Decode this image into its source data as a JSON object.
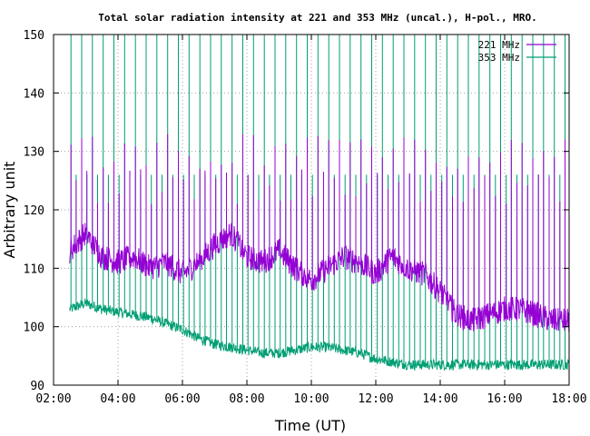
{
  "chart_data": {
    "type": "line",
    "title": "Total solar radiation intensity at 221 and 353 MHz (uncal.), H-pol., MRO.",
    "xlabel": "Time (UT)",
    "ylabel": "Arbitrary unit",
    "xlim": [
      "02:00",
      "18:00"
    ],
    "ylim": [
      90,
      150
    ],
    "x_ticks": [
      "02:00",
      "04:00",
      "06:00",
      "08:00",
      "10:00",
      "12:00",
      "14:00",
      "16:00",
      "18:00"
    ],
    "y_ticks": [
      90,
      100,
      110,
      120,
      130,
      140,
      150
    ],
    "grid": true,
    "legend_position": "top-right",
    "spike_interval_minutes": 10,
    "series": [
      {
        "name": "221 MHz",
        "color": "#9400d3",
        "x": [
          "02:30",
          "03:00",
          "03:30",
          "04:00",
          "04:30",
          "05:00",
          "05:30",
          "06:00",
          "06:30",
          "07:00",
          "07:30",
          "08:00",
          "08:30",
          "09:00",
          "09:30",
          "10:00",
          "10:30",
          "11:00",
          "11:30",
          "12:00",
          "12:30",
          "13:00",
          "13:30",
          "14:00",
          "14:30",
          "15:00",
          "15:30",
          "16:00",
          "16:30",
          "17:00",
          "17:30",
          "18:00"
        ],
        "values": [
          113,
          116,
          112,
          111,
          112,
          110,
          111,
          109,
          111,
          114,
          116,
          112,
          111,
          113,
          110,
          108,
          110,
          112,
          111,
          109,
          112,
          110,
          109,
          106,
          102,
          101,
          102,
          103,
          103,
          102,
          101,
          101
        ]
      },
      {
        "name": "353 MHz",
        "color": "#009e73",
        "x": [
          "02:30",
          "03:00",
          "03:30",
          "04:00",
          "04:30",
          "05:00",
          "05:30",
          "06:00",
          "06:30",
          "07:00",
          "07:30",
          "08:00",
          "08:30",
          "09:00",
          "09:30",
          "10:00",
          "10:30",
          "11:00",
          "11:30",
          "12:00",
          "12:30",
          "13:00",
          "13:30",
          "14:00",
          "14:30",
          "15:00",
          "15:30",
          "16:00",
          "16:30",
          "17:00",
          "17:30",
          "18:00"
        ],
        "values": [
          103,
          104,
          103,
          102.5,
          102,
          101.5,
          100.5,
          99.5,
          98,
          97,
          96.5,
          96,
          95.5,
          95.5,
          96,
          96.5,
          96.5,
          96,
          95.5,
          94.5,
          94,
          93.5,
          93.5,
          93.5,
          93.5,
          93.5,
          93.5,
          93.5,
          93.5,
          93.5,
          93.5,
          93.5
        ]
      }
    ]
  }
}
